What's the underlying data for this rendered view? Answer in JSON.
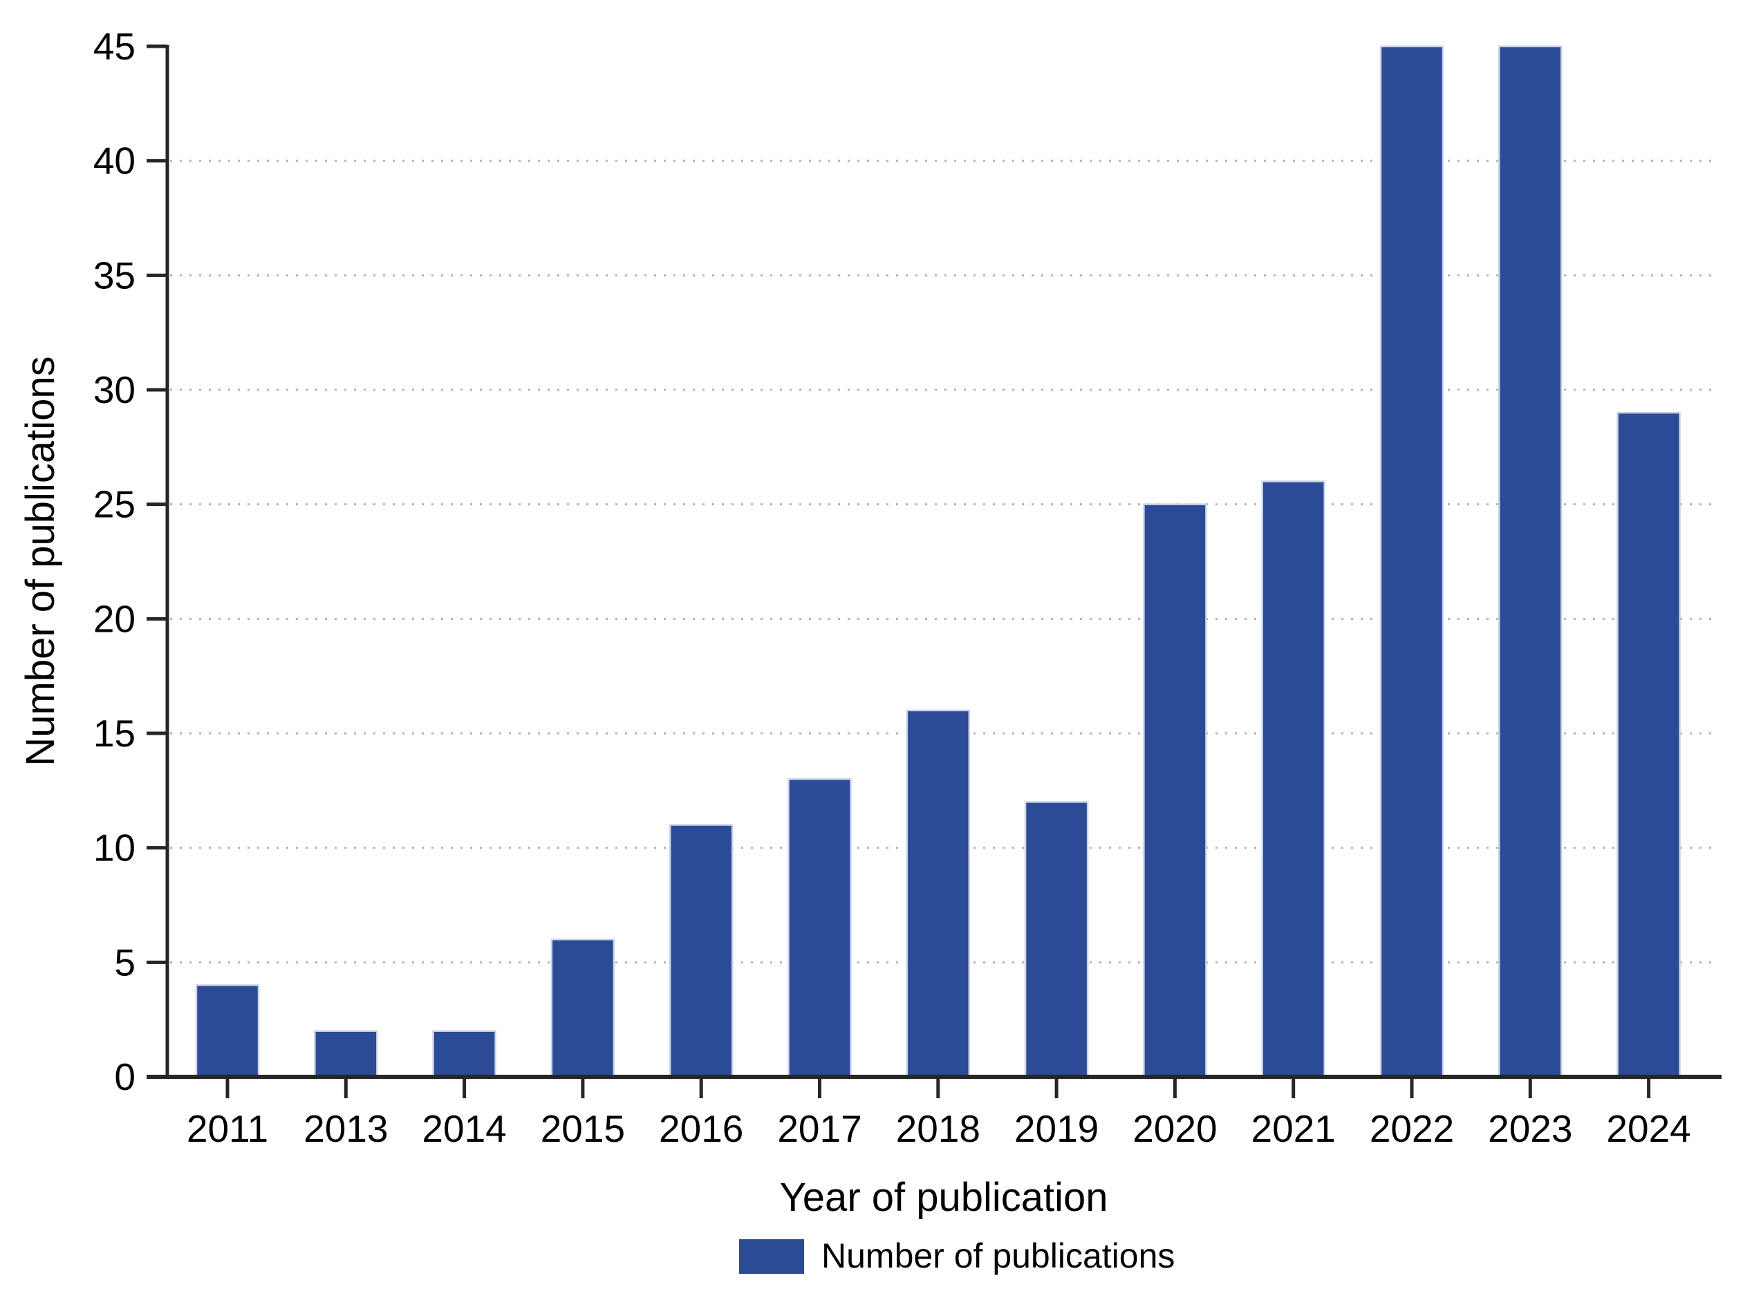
{
  "page": {
    "background": "#ffffff"
  },
  "chart_data": {
    "type": "bar",
    "categories": [
      "2011",
      "2013",
      "2014",
      "2015",
      "2016",
      "2017",
      "2018",
      "2019",
      "2020",
      "2021",
      "2022",
      "2023",
      "2024"
    ],
    "values": [
      4,
      2,
      2,
      6,
      11,
      13,
      16,
      12,
      25,
      26,
      45,
      45,
      29
    ],
    "series": [
      {
        "name": "Number of publications",
        "values": [
          4,
          2,
          2,
          6,
          11,
          13,
          16,
          12,
          25,
          26,
          45,
          45,
          29
        ]
      }
    ],
    "title": "",
    "xlabel": "Year of publication",
    "ylabel": "Number of publications",
    "ylim": [
      0,
      45
    ],
    "yticks": [
      0,
      5,
      10,
      15,
      20,
      25,
      30,
      35,
      40,
      45
    ],
    "gridlines_at": [
      5,
      10,
      15,
      20,
      25,
      30,
      35,
      40
    ],
    "grid": "horizontal-dotted",
    "legend": {
      "label": "Number of publications",
      "position": "bottom-center"
    },
    "colors": {
      "bar": "#2b4b96",
      "bar_edge": "#ccd3e8",
      "axis": "#262626",
      "gridline": "#b3b3b3",
      "text": "#000000"
    }
  }
}
